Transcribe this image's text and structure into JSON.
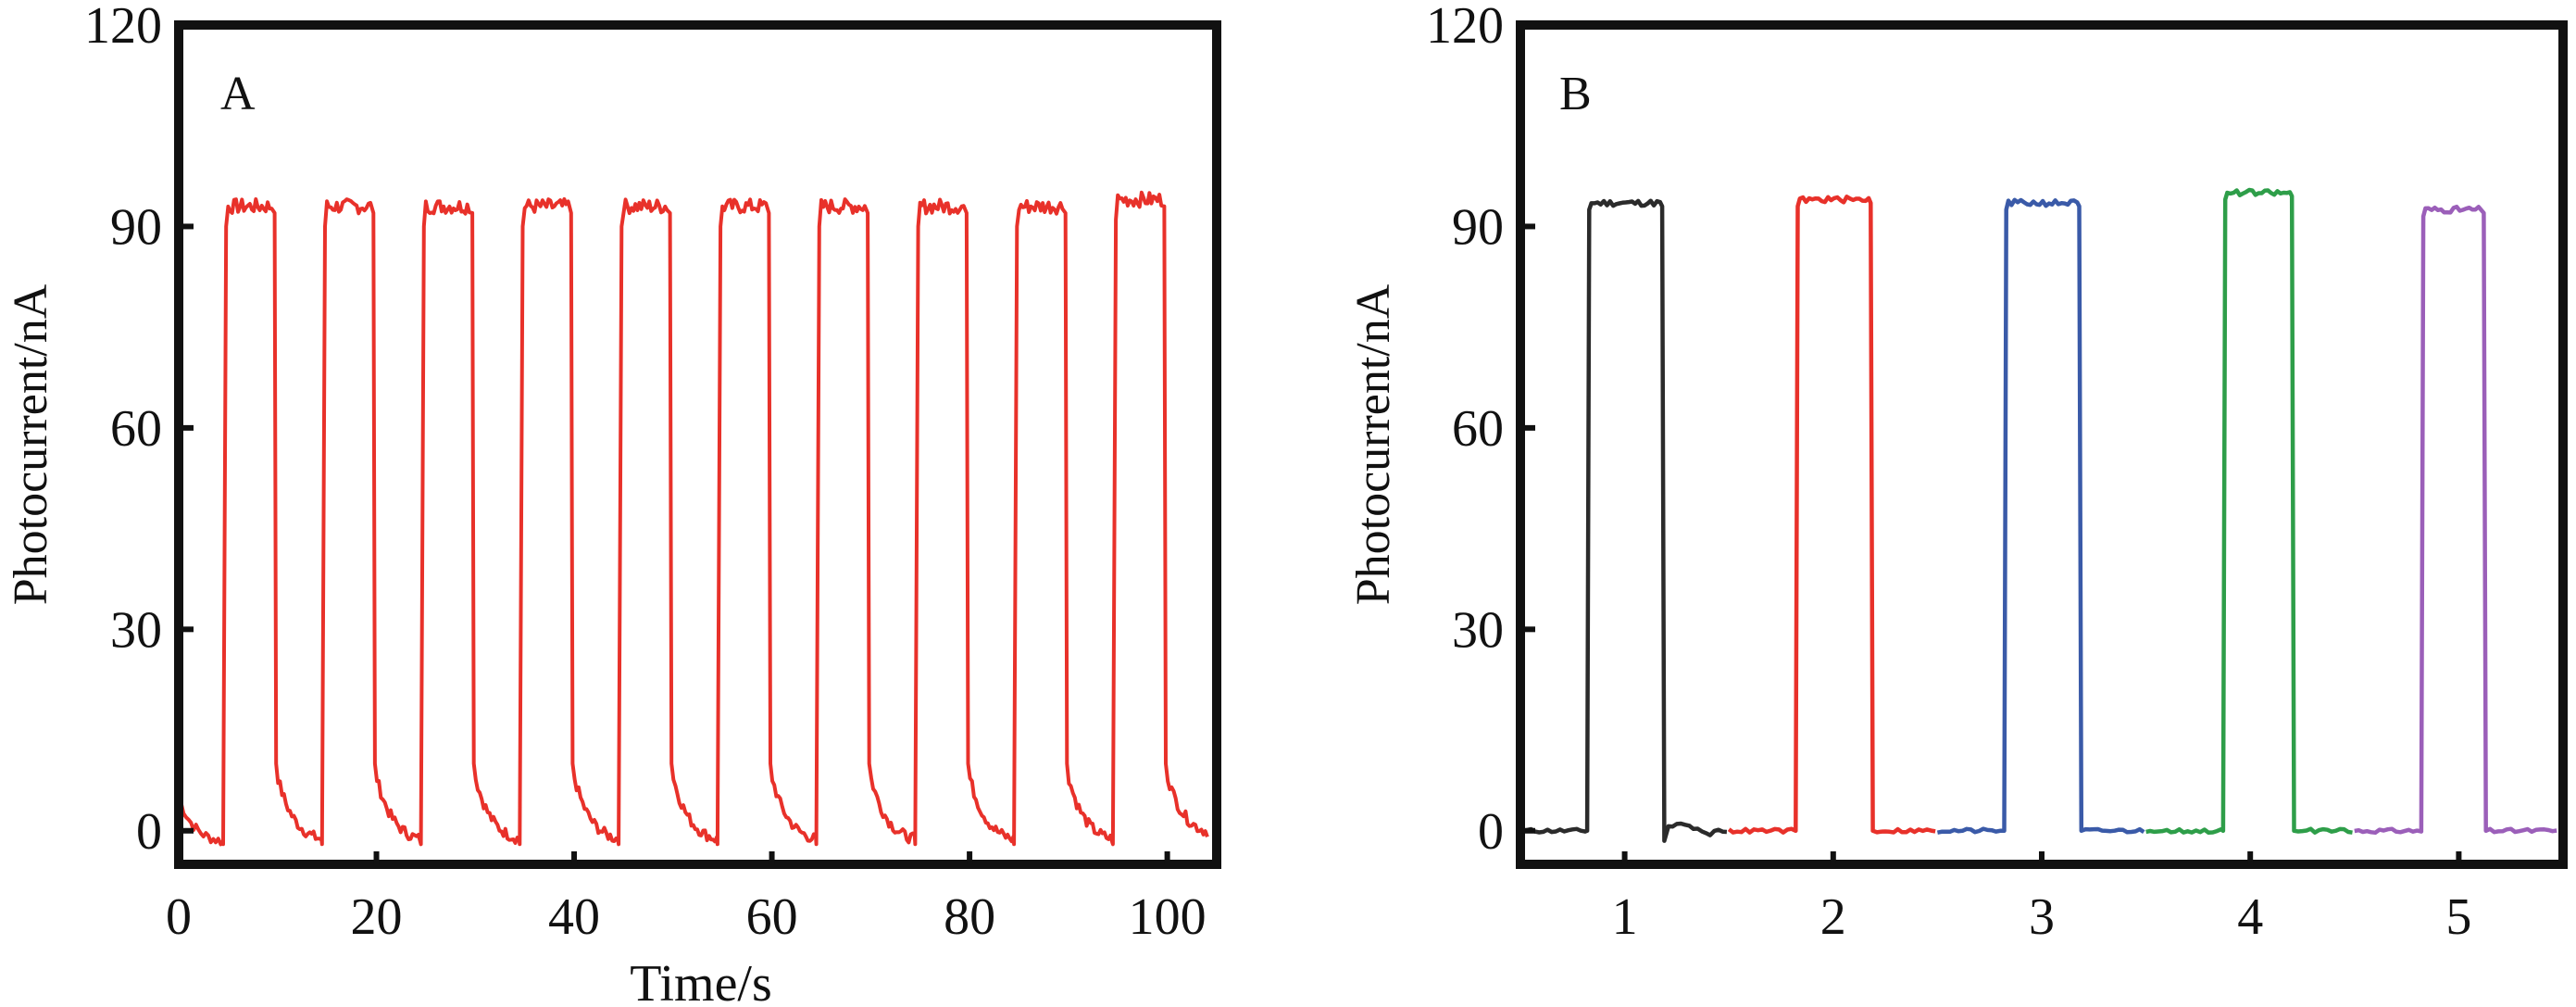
{
  "chart_data": [
    {
      "type": "line",
      "panel_label": "A",
      "title": "",
      "xlabel": "Time/s",
      "ylabel": "Photocurrent/nA",
      "xlim": [
        0,
        105
      ],
      "ylim": [
        -5,
        120
      ],
      "x_ticks": [
        0,
        20,
        40,
        60,
        80,
        100
      ],
      "y_ticks": [
        0,
        30,
        60,
        90,
        120
      ],
      "grid": false,
      "legend": "none",
      "color": "#e8312a",
      "cycles": {
        "on_times": [
          4.5,
          14.5,
          24.5,
          34.5,
          44.5,
          54.5,
          64.5,
          74.5,
          84.5,
          94.5
        ],
        "off_times": [
          9.7,
          19.7,
          29.7,
          39.7,
          49.7,
          59.7,
          69.7,
          79.7,
          89.7,
          99.7
        ],
        "on_level": [
          93,
          93,
          93,
          93,
          93,
          93,
          93,
          93,
          93,
          94
        ],
        "after_off_level": 10,
        "baseline_before_on": [
          -2,
          -2,
          -2,
          -2,
          -2,
          -2,
          -2,
          -2,
          -2,
          -2
        ],
        "initial_value": 5,
        "end_value": -1
      }
    },
    {
      "type": "line",
      "panel_label": "B",
      "title": "",
      "xlabel": "",
      "ylabel": "Photocurrent/nA",
      "xlim": [
        0.5,
        5.5
      ],
      "ylim": [
        -5,
        120
      ],
      "x_ticks": [
        1,
        2,
        3,
        4,
        5
      ],
      "y_ticks": [
        0,
        30,
        60,
        90,
        120
      ],
      "grid": false,
      "legend": "none",
      "series": [
        {
          "segment_start": 0.5,
          "segment_end": 1.5,
          "on": 0.82,
          "off": 1.18,
          "on_level": 93.5,
          "baseline": 0,
          "color": "#2b2b2b"
        },
        {
          "segment_start": 1.5,
          "segment_end": 2.5,
          "on": 1.82,
          "off": 2.18,
          "on_level": 94,
          "baseline": 0,
          "color": "#e8312a"
        },
        {
          "segment_start": 2.5,
          "segment_end": 3.5,
          "on": 2.82,
          "off": 3.18,
          "on_level": 93.5,
          "baseline": 0,
          "color": "#3a5aa8"
        },
        {
          "segment_start": 3.5,
          "segment_end": 4.5,
          "on": 3.87,
          "off": 4.2,
          "on_level": 95,
          "baseline": 0,
          "color": "#2e9e49"
        },
        {
          "segment_start": 4.5,
          "segment_end": 5.5,
          "on": 4.82,
          "off": 5.12,
          "on_level": 92.5,
          "baseline": 0,
          "color": "#9b5fb9"
        }
      ]
    }
  ]
}
